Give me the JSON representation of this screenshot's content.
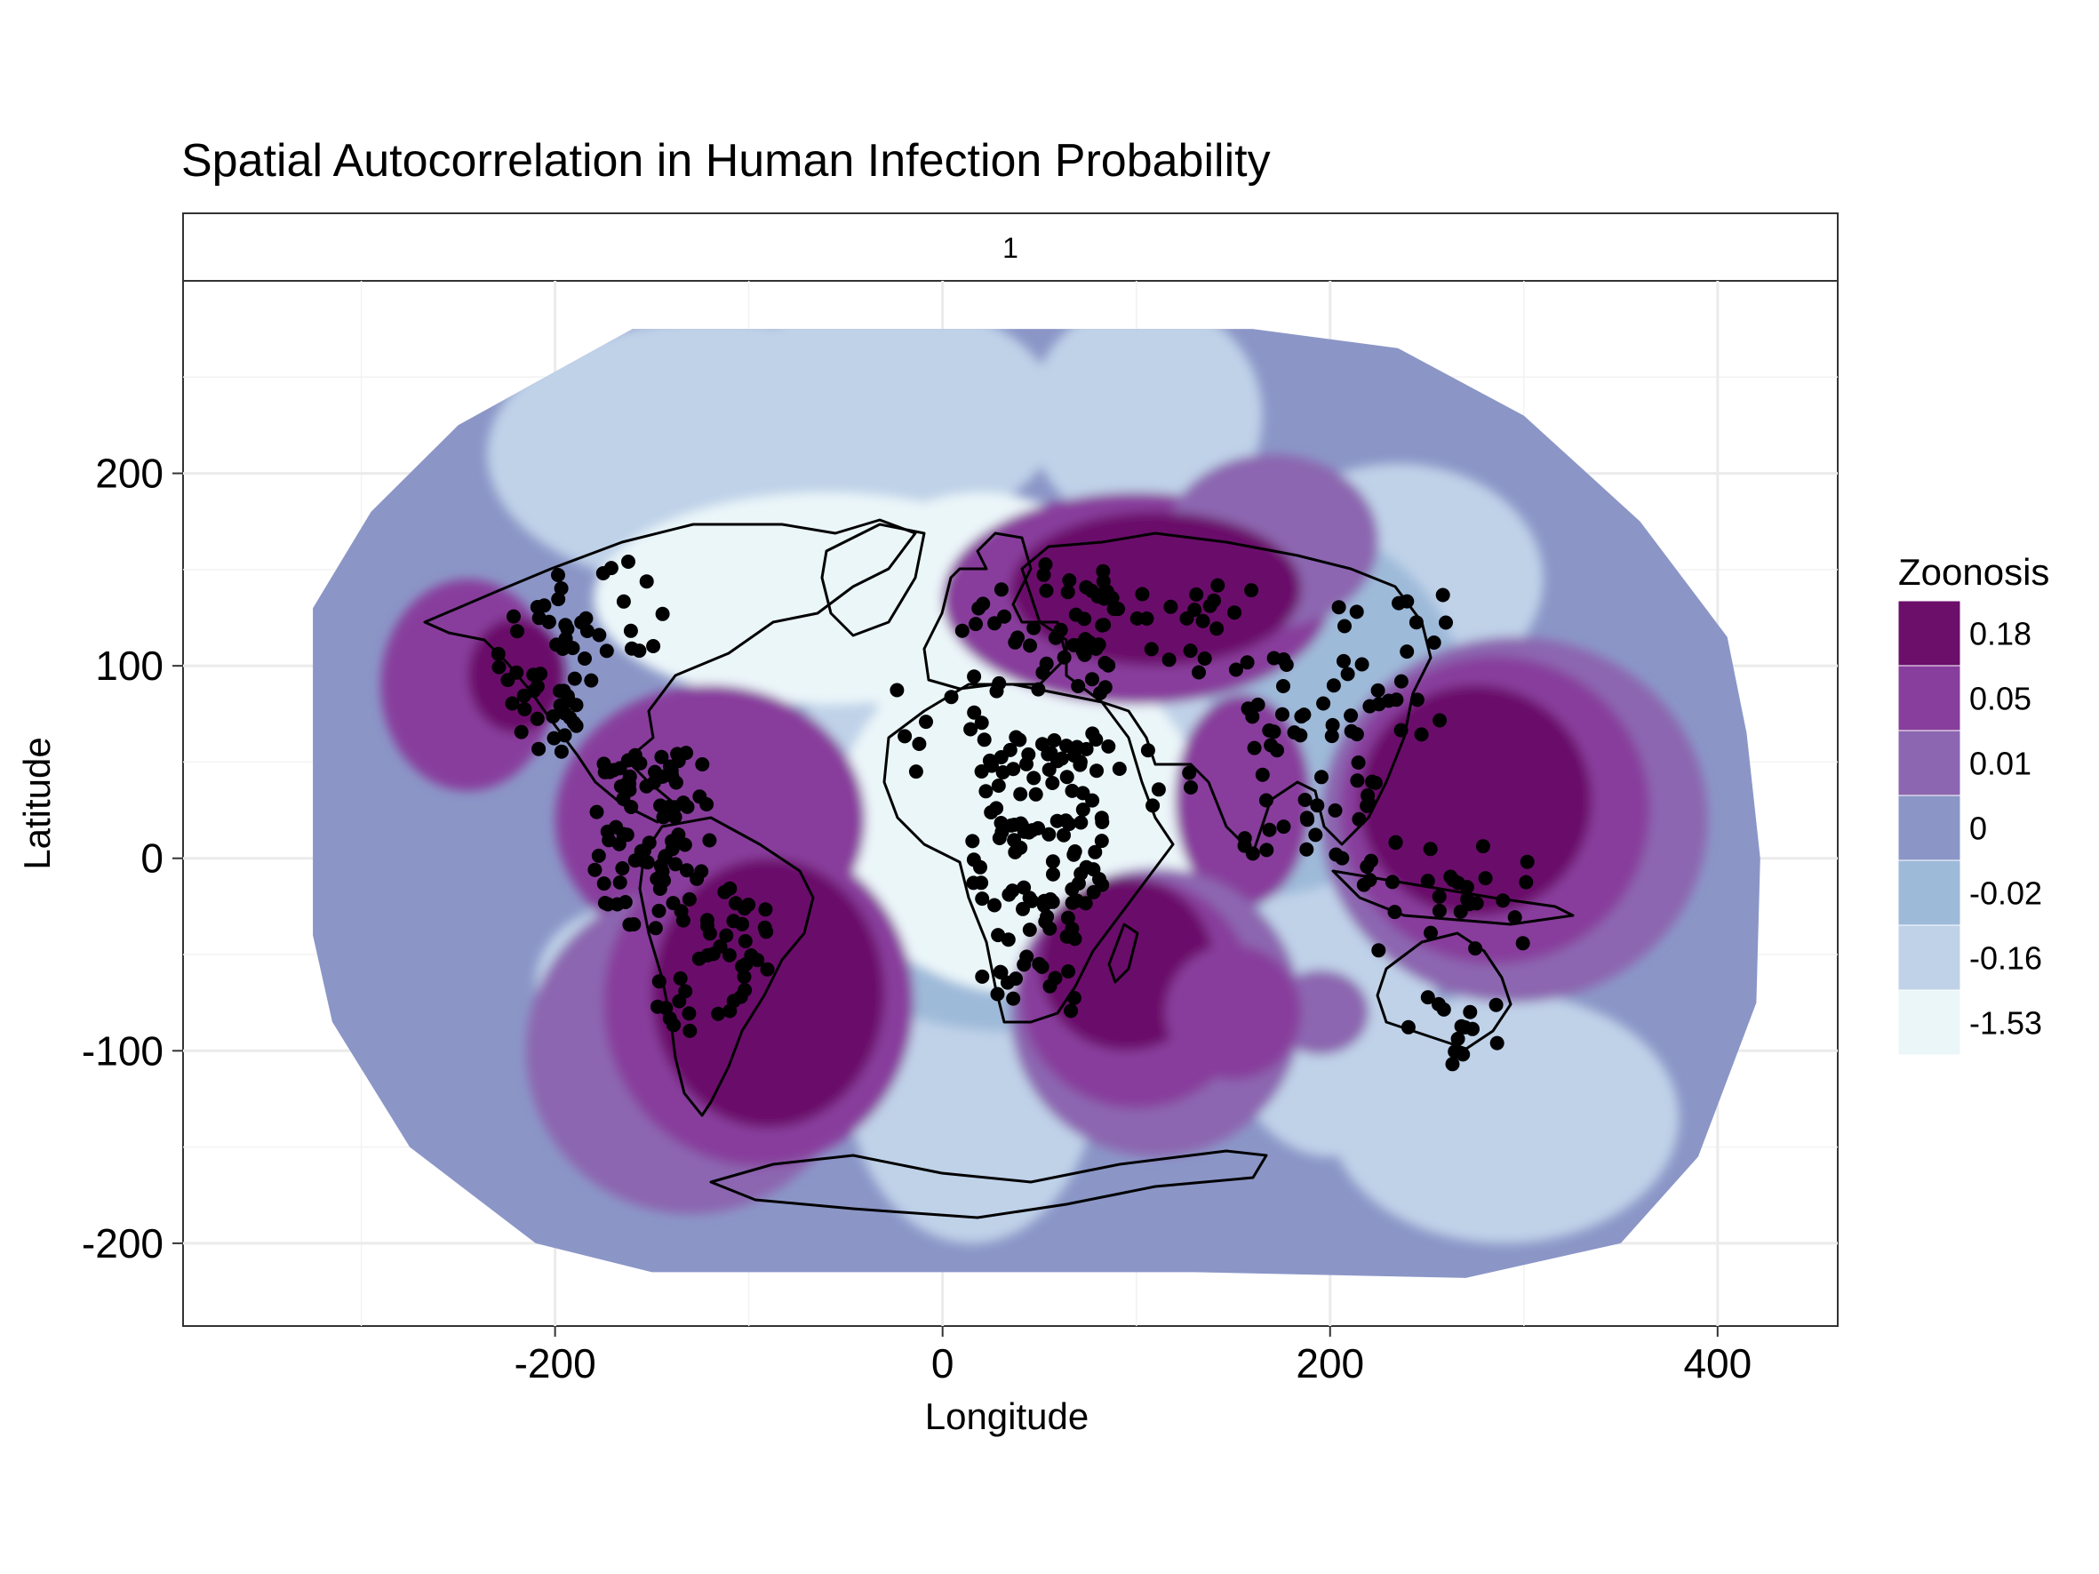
{
  "chart_data": {
    "type": "heatmap",
    "title": "Spatial Autocorrelation in Human Infection Probability",
    "facet_label": "1",
    "xlabel": "Longitude",
    "ylabel": "Latitude",
    "x_ticks": [
      -200,
      0,
      200,
      400
    ],
    "y_ticks": [
      200,
      100,
      0,
      -100,
      -200
    ],
    "xlim": [
      -392,
      462
    ],
    "ylim": [
      -243,
      300
    ],
    "grid": true,
    "legend": {
      "title": "Zoonosis",
      "position": "right",
      "entries": [
        {
          "label": "0.18",
          "color": "#6b0f6b"
        },
        {
          "label": "0.05",
          "color": "#883e9c"
        },
        {
          "label": "0.01",
          "color": "#8c66b0"
        },
        {
          "label": "0",
          "color": "#8b96c7"
        },
        {
          "label": "-0.02",
          "color": "#9ebad9"
        },
        {
          "label": "-0.16",
          "color": "#bfd2e8"
        },
        {
          "label": "-1.53",
          "color": "#ebf6f9"
        }
      ]
    },
    "field_extent": [
      [
        -160,
        275
      ],
      [
        160,
        275
      ],
      [
        235,
        265
      ],
      [
        300,
        230
      ],
      [
        360,
        175
      ],
      [
        405,
        115
      ],
      [
        415,
        65
      ],
      [
        422,
        0
      ],
      [
        420,
        -75
      ],
      [
        390,
        -155
      ],
      [
        350,
        -200
      ],
      [
        270,
        -218
      ],
      [
        130,
        -215
      ],
      [
        -150,
        -215
      ],
      [
        -210,
        -200
      ],
      [
        -275,
        -150
      ],
      [
        -315,
        -85
      ],
      [
        -325,
        -40
      ],
      [
        -325,
        130
      ],
      [
        -295,
        180
      ],
      [
        -250,
        225
      ]
    ],
    "zones": [
      {
        "level": "-0.16",
        "center": [
          -120,
          210
        ],
        "radius": [
          115,
          70
        ]
      },
      {
        "level": "-0.16",
        "center": [
          -30,
          230
        ],
        "radius": [
          90,
          60
        ]
      },
      {
        "level": "-0.16",
        "center": [
          105,
          230
        ],
        "radius": [
          60,
          60
        ]
      },
      {
        "level": "-0.16",
        "center": [
          235,
          145
        ],
        "radius": [
          75,
          60
        ]
      },
      {
        "level": "-0.16",
        "center": [
          15,
          -110
        ],
        "radius": [
          65,
          90
        ]
      },
      {
        "level": "-0.16",
        "center": [
          200,
          -80
        ],
        "radius": [
          55,
          75
        ]
      },
      {
        "level": "-0.16",
        "center": [
          290,
          -135
        ],
        "radius": [
          90,
          65
        ]
      },
      {
        "level": "-0.16",
        "center": [
          -165,
          -65
        ],
        "radius": [
          45,
          40
        ]
      },
      {
        "level": "-0.02",
        "center": [
          35,
          40
        ],
        "radius": [
          150,
          130
        ]
      },
      {
        "level": "-0.02",
        "center": [
          160,
          80
        ],
        "radius": [
          110,
          100
        ]
      },
      {
        "level": "-0.16",
        "center": [
          35,
          35
        ],
        "radius": [
          115,
          100
        ]
      },
      {
        "level": "-1.53",
        "center": [
          -60,
          135
        ],
        "radius": [
          120,
          55
        ]
      },
      {
        "level": "-1.53",
        "center": [
          20,
          125
        ],
        "radius": [
          75,
          65
        ]
      },
      {
        "level": "-1.53",
        "center": [
          40,
          20
        ],
        "radius": [
          95,
          90
        ]
      },
      {
        "level": "-1.53",
        "center": [
          115,
          5
        ],
        "radius": [
          40,
          45
        ]
      },
      {
        "level": "0.05",
        "center": [
          -245,
          90
        ],
        "radius": [
          45,
          55
        ]
      },
      {
        "level": "0.18",
        "center": [
          -220,
          95
        ],
        "radius": [
          25,
          30
        ]
      },
      {
        "level": "0.05",
        "center": [
          -120,
          20
        ],
        "radius": [
          80,
          70
        ]
      },
      {
        "level": "0.01",
        "center": [
          -130,
          -100
        ],
        "radius": [
          85,
          85
        ]
      },
      {
        "level": "0.05",
        "center": [
          -95,
          -75
        ],
        "radius": [
          80,
          85
        ]
      },
      {
        "level": "0.18",
        "center": [
          -90,
          -70
        ],
        "radius": [
          60,
          70
        ]
      },
      {
        "level": "0.05",
        "center": [
          100,
          135
        ],
        "radius": [
          100,
          55
        ]
      },
      {
        "level": "0.01",
        "center": [
          170,
          165
        ],
        "radius": [
          55,
          45
        ]
      },
      {
        "level": "0.18",
        "center": [
          110,
          140
        ],
        "radius": [
          75,
          40
        ]
      },
      {
        "level": "0.05",
        "center": [
          155,
          30
        ],
        "radius": [
          35,
          55
        ]
      },
      {
        "level": "0.01",
        "center": [
          110,
          -80
        ],
        "radius": [
          75,
          75
        ]
      },
      {
        "level": "0.05",
        "center": [
          100,
          -70
        ],
        "radius": [
          60,
          60
        ]
      },
      {
        "level": "0.18",
        "center": [
          95,
          -55
        ],
        "radius": [
          45,
          45
        ]
      },
      {
        "level": "0.01",
        "center": [
          295,
          20
        ],
        "radius": [
          100,
          95
        ]
      },
      {
        "level": "0.05",
        "center": [
          285,
          25
        ],
        "radius": [
          80,
          80
        ]
      },
      {
        "level": "0.18",
        "center": [
          275,
          30
        ],
        "radius": [
          60,
          60
        ]
      },
      {
        "level": "0.01",
        "center": [
          195,
          -80
        ],
        "radius": [
          25,
          22
        ]
      },
      {
        "level": "0.05",
        "center": [
          150,
          -80
        ],
        "radius": [
          35,
          35
        ]
      }
    ]
  }
}
